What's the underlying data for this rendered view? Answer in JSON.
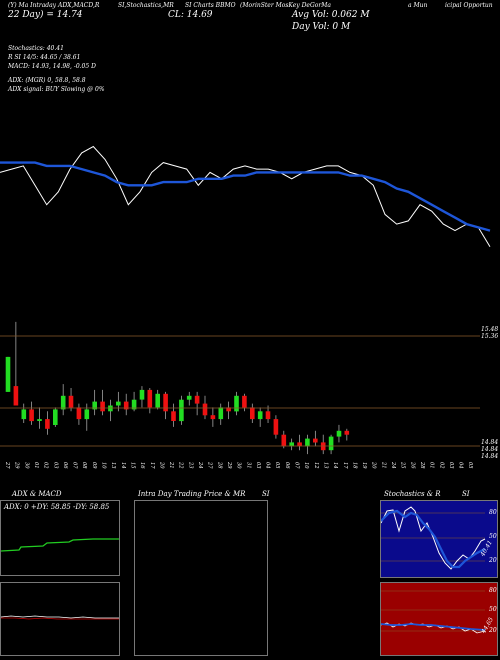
{
  "header": {
    "line1_left": "(Y) Ma Intraday ADX,MACD,R",
    "line1_mid": "SI,Stochastics,MR",
    "line1_right_a": "SI Charts BBMO",
    "line1_right_b": "(MorinSter MosKey DeGorMa",
    "line1_right_c": "a Mun",
    "line1_right_d": "icipal Opportun",
    "line2_left": "22 Day) = 14.74",
    "line2_cl": "CL: 14.69",
    "avg_vol": "Avg Vol: 0.062  M",
    "day_vol": "Day Vol: 0   M"
  },
  "stats": {
    "line1": "Stochastics: 40.41",
    "line2": "R                SI 14/5: 44.65 / 38.61",
    "line3": "MACD: 14.93,  14.98, -0.05 D",
    "line4": "ADX:                  (MGR) 0, 58.8,  58.8",
    "line5": "ADX  signal:                    BUY Slowing @ 0%"
  },
  "price_labels": {
    "high1": "15.48",
    "high2": "15.36",
    "low1": "14.84",
    "low2": "14.84",
    "low3": "14.84"
  },
  "dates": [
    "27 Sep",
    "29 Sep",
    "30 Sep",
    "01 Oct",
    "02 Oct",
    "03 Oct",
    "06 Oct",
    "07 Oct",
    "08 Oct",
    "09 Oct",
    "10 Oct",
    "13 Oct",
    "14 Oct",
    "15 Oct",
    "16 Oct",
    "17 Oct",
    "20 Oct",
    "21 Oct",
    "22 Oct",
    "23 Oct",
    "24 Oct",
    "27 Oct",
    "28 Oct",
    "29 Oct",
    "30 Oct",
    "31 Oct",
    "03 Nov",
    "04 Nov",
    "05 Nov",
    "06 Nov",
    "07 Nov",
    "10 Nov",
    "12 Nov",
    "13 Nov",
    "14 Nov",
    "17 Nov",
    "18 Nov",
    "19 Nov",
    "20 Nov",
    "21 Nov",
    "24 Nov",
    "25 Nov",
    "26 Nov",
    "28 Nov",
    "01 Dec",
    "02 Dec",
    "03 Dec",
    "04 Dec",
    "05 Dec"
  ],
  "panels": {
    "adx": {
      "title": "ADX  & MACD",
      "readout": "ADX: 0  +DY: 58.85  -DY: 58.85"
    },
    "intraday": {
      "title_left": "Intra  Day Trading Price  & MR",
      "title_right": "SI"
    },
    "stoch": {
      "title_left": "Stochastics & R",
      "title_right": "SI",
      "upper_labels": [
        "80",
        "50",
        "20"
      ],
      "upper_value": "40.41",
      "lower_labels": [
        "80",
        "50",
        "20"
      ],
      "lower_value": "44.65"
    }
  },
  "colors": {
    "sma": "#1e56d8",
    "up": "#22dd22",
    "down": "#ee1111",
    "level_line": "#8a5a2a",
    "stoch_bg": "#0a0a8c",
    "rsi_bg": "#9a0000",
    "adx_line": "#22cc22"
  },
  "chart_data": {
    "type": "line",
    "series": [
      {
        "values": [
          14.92,
          14.93,
          14.94,
          14.88,
          14.82,
          14.86,
          14.93,
          14.98,
          15.0,
          14.96,
          14.9,
          14.82,
          14.86,
          14.92,
          14.95,
          14.94,
          14.93,
          14.88,
          14.92,
          14.9,
          14.93,
          14.94,
          14.93,
          14.93,
          14.92,
          14.9,
          14.92,
          14.93,
          14.94,
          14.94,
          14.92,
          14.91,
          14.88,
          14.79,
          14.76,
          14.77,
          14.82,
          14.8,
          14.76,
          14.74,
          14.76,
          14.75,
          14.69
        ]
      },
      {
        "values": [
          14.95,
          14.95,
          14.95,
          14.95,
          14.94,
          14.94,
          14.94,
          14.93,
          14.92,
          14.91,
          14.89,
          14.88,
          14.88,
          14.88,
          14.89,
          14.89,
          14.89,
          14.9,
          14.9,
          14.9,
          14.91,
          14.91,
          14.92,
          14.92,
          14.92,
          14.92,
          14.92,
          14.92,
          14.92,
          14.92,
          14.91,
          14.91,
          14.9,
          14.89,
          14.87,
          14.86,
          14.84,
          14.82,
          14.8,
          14.78,
          14.76,
          14.75,
          14.74
        ]
      }
    ],
    "candles": [
      [
        15.12,
        15.3,
        15.12,
        15.3
      ],
      [
        15.15,
        15.48,
        15.05,
        15.05
      ],
      [
        14.98,
        15.06,
        14.96,
        15.03
      ],
      [
        15.03,
        15.07,
        14.95,
        14.97
      ],
      [
        14.97,
        15.04,
        14.93,
        14.98
      ],
      [
        14.98,
        15.02,
        14.9,
        14.93
      ],
      [
        14.95,
        15.04,
        14.94,
        15.03
      ],
      [
        15.03,
        15.16,
        15.0,
        15.1
      ],
      [
        15.1,
        15.14,
        15.02,
        15.04
      ],
      [
        15.04,
        15.06,
        14.95,
        14.98
      ],
      [
        14.98,
        15.06,
        14.92,
        15.03
      ],
      [
        15.03,
        15.13,
        15.0,
        15.07
      ],
      [
        15.07,
        15.13,
        15.0,
        15.02
      ],
      [
        15.02,
        15.08,
        14.97,
        15.05
      ],
      [
        15.05,
        15.12,
        15.02,
        15.07
      ],
      [
        15.07,
        15.11,
        15.0,
        15.03
      ],
      [
        15.03,
        15.12,
        15.02,
        15.08
      ],
      [
        15.08,
        15.15,
        15.04,
        15.13
      ],
      [
        15.13,
        15.14,
        15.01,
        15.04
      ],
      [
        15.04,
        15.13,
        15.03,
        15.11
      ],
      [
        15.11,
        15.12,
        14.98,
        15.02
      ],
      [
        15.02,
        15.06,
        14.94,
        14.97
      ],
      [
        14.97,
        15.1,
        14.95,
        15.08
      ],
      [
        15.08,
        15.12,
        15.05,
        15.1
      ],
      [
        15.1,
        15.12,
        15.0,
        15.06
      ],
      [
        15.06,
        15.1,
        14.98,
        15.0
      ],
      [
        15.0,
        15.04,
        14.94,
        14.98
      ],
      [
        14.98,
        15.06,
        14.95,
        15.04
      ],
      [
        15.04,
        15.07,
        14.98,
        15.02
      ],
      [
        15.02,
        15.12,
        15.0,
        15.1
      ],
      [
        15.1,
        15.11,
        15.02,
        15.04
      ],
      [
        15.04,
        15.06,
        14.96,
        14.98
      ],
      [
        14.98,
        15.04,
        14.94,
        15.02
      ],
      [
        15.02,
        15.05,
        14.96,
        14.98
      ],
      [
        14.98,
        15.0,
        14.88,
        14.9
      ],
      [
        14.9,
        14.92,
        14.83,
        14.84
      ],
      [
        14.84,
        14.88,
        14.82,
        14.86
      ],
      [
        14.86,
        14.9,
        14.82,
        14.84
      ],
      [
        14.84,
        14.9,
        14.8,
        14.88
      ],
      [
        14.88,
        14.92,
        14.84,
        14.86
      ],
      [
        14.86,
        14.9,
        14.8,
        14.82
      ],
      [
        14.82,
        14.9,
        14.8,
        14.89
      ],
      [
        14.89,
        14.95,
        14.86,
        14.92
      ],
      [
        14.92,
        14.93,
        14.87,
        14.9
      ]
    ]
  }
}
